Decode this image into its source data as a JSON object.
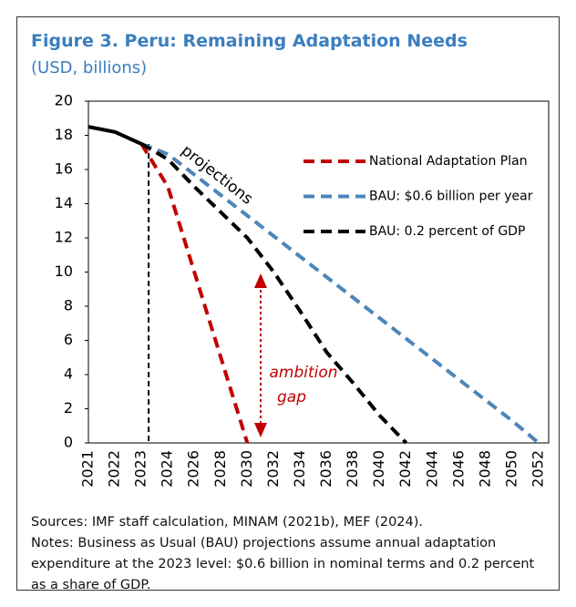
{
  "chart_data": {
    "type": "line",
    "title": "Figure 3. Peru: Remaining Adaptation Needs",
    "subtitle": "(USD, billions)",
    "categories": [
      "2021",
      "2022",
      "2023",
      "2024",
      "2026",
      "2028",
      "2030",
      "2032",
      "2034",
      "2036",
      "2038",
      "2040",
      "2042",
      "2044",
      "2046",
      "2048",
      "2050",
      "2052"
    ],
    "series": [
      {
        "color": "#000000",
        "style": "solid",
        "values": [
          18.5,
          18.2,
          17.5,
          null,
          null,
          null,
          null,
          null,
          null,
          null,
          null,
          null,
          null,
          null,
          null,
          null,
          null,
          null
        ]
      },
      {
        "name": "National Adaptation Plan",
        "color": "#c00000",
        "style": "dashed",
        "values": [
          null,
          null,
          17.5,
          15,
          10,
          5,
          0,
          null,
          null,
          null,
          null,
          null,
          null,
          null,
          null,
          null,
          null,
          null
        ]
      },
      {
        "name": "BAU: $0.6 billion per year",
        "color": "#4d86b8",
        "style": "dashed",
        "values": [
          null,
          null,
          17.5,
          16.9,
          15.7,
          14.5,
          13.3,
          12.1,
          10.9,
          9.7,
          8.5,
          7.3,
          6.1,
          4.9,
          3.7,
          2.5,
          1.3,
          0
        ]
      },
      {
        "name": "BAU: 0.2 percent of GDP",
        "color": "#000000",
        "style": "dashed",
        "values": [
          null,
          null,
          17.5,
          16.6,
          15,
          13.5,
          12,
          10,
          7.7,
          5.3,
          3.5,
          1.6,
          0,
          null,
          null,
          null,
          null,
          null
        ]
      }
    ],
    "ylim": [
      0,
      20
    ],
    "yticks": [
      0,
      2,
      4,
      6,
      8,
      10,
      12,
      14,
      16,
      18,
      20
    ],
    "grid": false,
    "legend": "upper right",
    "annotations": {
      "projections": "projections",
      "ambition_gap": [
        "ambition",
        "gap"
      ]
    },
    "sources": "Sources: IMF staff calculation, MINAM (2021b), MEF (2024).",
    "notes": "Notes: Business as Usual (BAU) projections assume annual adaptation expenditure at the 2023 level: $0.6 billion in nominal terms and 0.2 percent as a share of GDP."
  }
}
